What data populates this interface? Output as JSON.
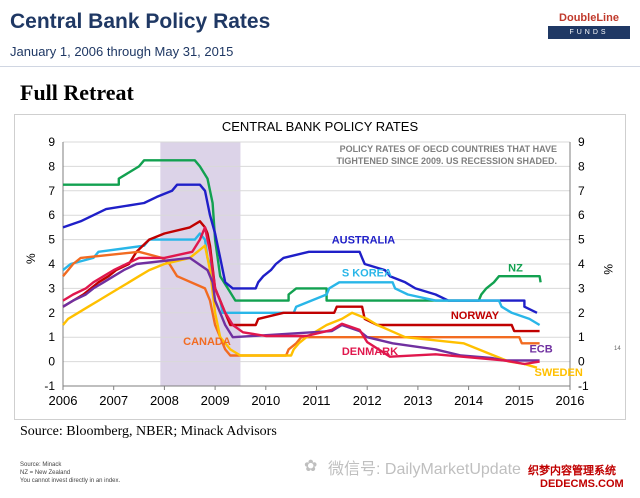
{
  "header": {
    "title": "Central Bank Policy Rates",
    "subtitle": "January 1, 2006 through May 31, 2015",
    "logo_top": "DoubleLine",
    "logo_bottom": "FUNDS"
  },
  "headline": "Full Retreat",
  "source": "Source: Bloomberg, NBER; Minack Advisors",
  "footnotes": [
    "Source: Minack",
    "NZ = New Zealand",
    "You cannot invest directly in an index."
  ],
  "watermark": "微信号: DailyMarketUpdate",
  "stamp": {
    "line1": "织梦内容管理系统",
    "line2": "DEDECMS.COM"
  },
  "page_number": "14",
  "chart_data": {
    "type": "line",
    "title": "CENTRAL BANK POLICY RATES",
    "annotation": [
      "POLICY RATES OF OECD COUNTRIES THAT HAVE",
      "TIGHTENED SINCE 2009.  US RECESSION SHADED."
    ],
    "xlabel": "",
    "ylabel": "%",
    "y2label": "%",
    "xlim": [
      2006,
      2016
    ],
    "ylim": [
      -1,
      9
    ],
    "xticks": [
      "2006",
      "2007",
      "2008",
      "2009",
      "2010",
      "2011",
      "2012",
      "2013",
      "2014",
      "2015",
      "2016"
    ],
    "yticks": [
      "-1",
      "0",
      "1",
      "2",
      "3",
      "4",
      "5",
      "6",
      "7",
      "8",
      "9"
    ],
    "grid": "horizontal",
    "recession": [
      2007.92,
      2009.5
    ],
    "series": [
      {
        "name": "NZ",
        "color": "#12a150",
        "points": [
          [
            2006,
            7.25
          ],
          [
            2007.1,
            7.25
          ],
          [
            2007.1,
            7.5
          ],
          [
            2007.3,
            7.75
          ],
          [
            2007.5,
            8.0
          ],
          [
            2007.6,
            8.25
          ],
          [
            2008.6,
            8.25
          ],
          [
            2008.7,
            8.0
          ],
          [
            2008.85,
            7.5
          ],
          [
            2008.95,
            6.5
          ],
          [
            2009.0,
            5.0
          ],
          [
            2009.1,
            3.5
          ],
          [
            2009.25,
            3.0
          ],
          [
            2009.4,
            2.5
          ],
          [
            2010.45,
            2.5
          ],
          [
            2010.45,
            2.75
          ],
          [
            2010.6,
            3.0
          ],
          [
            2011.2,
            3.0
          ],
          [
            2011.2,
            2.5
          ],
          [
            2014.2,
            2.5
          ],
          [
            2014.25,
            2.75
          ],
          [
            2014.35,
            3.0
          ],
          [
            2014.5,
            3.25
          ],
          [
            2014.6,
            3.5
          ],
          [
            2015.4,
            3.5
          ],
          [
            2015.42,
            3.25
          ]
        ]
      },
      {
        "name": "AUSTRALIA",
        "color": "#1f1fc8",
        "points": [
          [
            2006,
            5.5
          ],
          [
            2006.35,
            5.75
          ],
          [
            2006.6,
            6.0
          ],
          [
            2006.85,
            6.25
          ],
          [
            2007.6,
            6.5
          ],
          [
            2007.85,
            6.75
          ],
          [
            2008.15,
            7.0
          ],
          [
            2008.25,
            7.25
          ],
          [
            2008.7,
            7.25
          ],
          [
            2008.8,
            7.0
          ],
          [
            2008.9,
            6.0
          ],
          [
            2009.0,
            5.25
          ],
          [
            2009.1,
            4.25
          ],
          [
            2009.2,
            3.25
          ],
          [
            2009.35,
            3.0
          ],
          [
            2009.8,
            3.0
          ],
          [
            2009.85,
            3.25
          ],
          [
            2009.95,
            3.5
          ],
          [
            2010.1,
            3.75
          ],
          [
            2010.2,
            4.0
          ],
          [
            2010.35,
            4.25
          ],
          [
            2010.85,
            4.5
          ],
          [
            2011.85,
            4.5
          ],
          [
            2011.9,
            4.25
          ],
          [
            2011.95,
            4.0
          ],
          [
            2012.35,
            3.75
          ],
          [
            2012.45,
            3.5
          ],
          [
            2012.75,
            3.25
          ],
          [
            2012.95,
            3.0
          ],
          [
            2013.35,
            2.75
          ],
          [
            2013.6,
            2.5
          ],
          [
            2015.1,
            2.5
          ],
          [
            2015.1,
            2.25
          ],
          [
            2015.35,
            2.0
          ]
        ]
      },
      {
        "name": "S KOREA",
        "color": "#29b6e8",
        "points": [
          [
            2006,
            3.75
          ],
          [
            2006.15,
            4.0
          ],
          [
            2006.6,
            4.25
          ],
          [
            2006.7,
            4.5
          ],
          [
            2007.6,
            4.75
          ],
          [
            2007.7,
            5.0
          ],
          [
            2008.6,
            5.0
          ],
          [
            2008.7,
            5.25
          ],
          [
            2008.8,
            5.0
          ],
          [
            2008.85,
            4.25
          ],
          [
            2008.9,
            4.0
          ],
          [
            2009.0,
            3.0
          ],
          [
            2009.1,
            2.5
          ],
          [
            2009.15,
            2.0
          ],
          [
            2010.55,
            2.0
          ],
          [
            2010.6,
            2.25
          ],
          [
            2010.9,
            2.5
          ],
          [
            2011.2,
            2.75
          ],
          [
            2011.25,
            3.0
          ],
          [
            2011.45,
            3.25
          ],
          [
            2012.5,
            3.25
          ],
          [
            2012.55,
            3.0
          ],
          [
            2012.8,
            2.75
          ],
          [
            2013.35,
            2.5
          ],
          [
            2014.6,
            2.5
          ],
          [
            2014.65,
            2.25
          ],
          [
            2014.85,
            2.0
          ],
          [
            2015.2,
            1.75
          ],
          [
            2015.4,
            1.5
          ]
        ]
      },
      {
        "name": "NORWAY",
        "color": "#c00000",
        "points": [
          [
            2006,
            2.25
          ],
          [
            2006.2,
            2.5
          ],
          [
            2006.4,
            2.75
          ],
          [
            2006.55,
            3.0
          ],
          [
            2006.7,
            3.25
          ],
          [
            2006.9,
            3.5
          ],
          [
            2007.05,
            3.75
          ],
          [
            2007.3,
            4.0
          ],
          [
            2007.45,
            4.5
          ],
          [
            2007.7,
            5.0
          ],
          [
            2008.0,
            5.25
          ],
          [
            2008.5,
            5.5
          ],
          [
            2008.7,
            5.75
          ],
          [
            2008.8,
            5.5
          ],
          [
            2008.85,
            5.25
          ],
          [
            2008.9,
            4.75
          ],
          [
            2009.0,
            3.0
          ],
          [
            2009.1,
            2.5
          ],
          [
            2009.2,
            2.0
          ],
          [
            2009.3,
            1.5
          ],
          [
            2009.8,
            1.5
          ],
          [
            2009.85,
            1.75
          ],
          [
            2010.35,
            2.0
          ],
          [
            2011.35,
            2.0
          ],
          [
            2011.4,
            2.25
          ],
          [
            2011.9,
            2.25
          ],
          [
            2011.95,
            1.75
          ],
          [
            2012.2,
            1.5
          ],
          [
            2014.85,
            1.5
          ],
          [
            2014.9,
            1.25
          ],
          [
            2015.4,
            1.25
          ]
        ]
      },
      {
        "name": "CANADA",
        "color": "#f26b21",
        "points": [
          [
            2006,
            3.5
          ],
          [
            2006.1,
            3.75
          ],
          [
            2006.2,
            4.0
          ],
          [
            2006.35,
            4.25
          ],
          [
            2007.5,
            4.5
          ],
          [
            2007.95,
            4.25
          ],
          [
            2008.1,
            4.0
          ],
          [
            2008.25,
            3.5
          ],
          [
            2008.8,
            3.0
          ],
          [
            2008.9,
            2.5
          ],
          [
            2009.0,
            1.5
          ],
          [
            2009.1,
            1.0
          ],
          [
            2009.2,
            0.5
          ],
          [
            2009.3,
            0.25
          ],
          [
            2010.4,
            0.25
          ],
          [
            2010.45,
            0.5
          ],
          [
            2010.6,
            0.75
          ],
          [
            2010.7,
            1.0
          ],
          [
            2015.0,
            1.0
          ],
          [
            2015.05,
            0.75
          ],
          [
            2015.4,
            0.75
          ]
        ]
      },
      {
        "name": "SWEDEN",
        "color": "#ffc000",
        "points": [
          [
            2006,
            1.5
          ],
          [
            2006.1,
            1.75
          ],
          [
            2006.3,
            2.0
          ],
          [
            2006.5,
            2.25
          ],
          [
            2006.7,
            2.5
          ],
          [
            2006.9,
            2.75
          ],
          [
            2007.1,
            3.0
          ],
          [
            2007.3,
            3.25
          ],
          [
            2007.5,
            3.5
          ],
          [
            2007.7,
            3.75
          ],
          [
            2008.0,
            4.0
          ],
          [
            2008.5,
            4.25
          ],
          [
            2008.8,
            4.75
          ],
          [
            2008.9,
            3.75
          ],
          [
            2009.0,
            2.0
          ],
          [
            2009.1,
            1.0
          ],
          [
            2009.3,
            0.5
          ],
          [
            2009.5,
            0.25
          ],
          [
            2010.5,
            0.25
          ],
          [
            2010.55,
            0.5
          ],
          [
            2010.65,
            0.75
          ],
          [
            2010.8,
            1.0
          ],
          [
            2011.0,
            1.25
          ],
          [
            2011.2,
            1.5
          ],
          [
            2011.5,
            1.75
          ],
          [
            2011.7,
            2.0
          ],
          [
            2012.0,
            1.75
          ],
          [
            2012.2,
            1.5
          ],
          [
            2012.75,
            1.0
          ],
          [
            2013.9,
            0.75
          ],
          [
            2014.5,
            0.25
          ],
          [
            2014.8,
            0.0
          ],
          [
            2015.1,
            -0.1
          ],
          [
            2015.35,
            -0.25
          ]
        ]
      },
      {
        "name": "ECB",
        "color": "#7030a0",
        "points": [
          [
            2006,
            2.25
          ],
          [
            2006.2,
            2.5
          ],
          [
            2006.45,
            2.75
          ],
          [
            2006.6,
            3.0
          ],
          [
            2006.8,
            3.25
          ],
          [
            2007.0,
            3.5
          ],
          [
            2007.2,
            3.75
          ],
          [
            2007.45,
            4.0
          ],
          [
            2008.5,
            4.25
          ],
          [
            2008.85,
            3.75
          ],
          [
            2008.95,
            3.25
          ],
          [
            2009.0,
            2.5
          ],
          [
            2009.1,
            2.0
          ],
          [
            2009.2,
            1.5
          ],
          [
            2009.35,
            1.0
          ],
          [
            2011.3,
            1.25
          ],
          [
            2011.5,
            1.5
          ],
          [
            2011.85,
            1.25
          ],
          [
            2012.0,
            1.0
          ],
          [
            2012.5,
            0.75
          ],
          [
            2013.35,
            0.5
          ],
          [
            2013.85,
            0.25
          ],
          [
            2014.45,
            0.15
          ],
          [
            2014.7,
            0.05
          ],
          [
            2015.4,
            0.05
          ]
        ]
      },
      {
        "name": "DENMARK",
        "color": "#e0174d",
        "points": [
          [
            2006,
            2.5
          ],
          [
            2006.2,
            2.75
          ],
          [
            2006.45,
            3.0
          ],
          [
            2006.6,
            3.25
          ],
          [
            2006.8,
            3.5
          ],
          [
            2007.0,
            3.75
          ],
          [
            2007.25,
            4.0
          ],
          [
            2007.5,
            4.25
          ],
          [
            2008.0,
            4.25
          ],
          [
            2008.55,
            4.5
          ],
          [
            2008.7,
            5.0
          ],
          [
            2008.8,
            5.5
          ],
          [
            2008.9,
            4.5
          ],
          [
            2009.0,
            3.0
          ],
          [
            2009.2,
            2.0
          ],
          [
            2009.35,
            1.5
          ],
          [
            2009.55,
            1.2
          ],
          [
            2010.0,
            1.05
          ],
          [
            2010.8,
            1.05
          ],
          [
            2011.3,
            1.3
          ],
          [
            2011.5,
            1.55
          ],
          [
            2011.85,
            1.3
          ],
          [
            2012.0,
            0.8
          ],
          [
            2012.45,
            0.2
          ],
          [
            2013.35,
            0.3
          ],
          [
            2014.7,
            0.05
          ],
          [
            2015.1,
            -0.1
          ],
          [
            2015.4,
            0.0
          ]
        ]
      }
    ],
    "series_labels": [
      {
        "name": "NZ",
        "x": 2014.78,
        "y": 3.7
      },
      {
        "name": "AUSTRALIA",
        "x": 2011.3,
        "y": 4.85
      },
      {
        "name": "S KOREA",
        "x": 2011.5,
        "y": 3.48
      },
      {
        "name": "NORWAY",
        "x": 2013.65,
        "y": 1.75
      },
      {
        "name": "CANADA",
        "x": 2008.37,
        "y": 0.68
      },
      {
        "name": "SWEDEN",
        "x": 2015.3,
        "y": -0.6
      },
      {
        "name": "ECB",
        "x": 2015.2,
        "y": 0.38
      },
      {
        "name": "DENMARK",
        "x": 2011.5,
        "y": 0.28
      }
    ]
  }
}
